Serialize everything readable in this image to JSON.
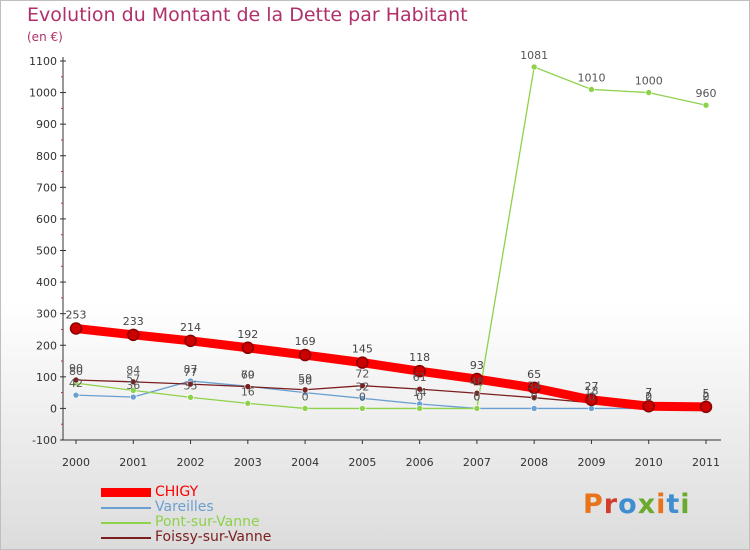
{
  "header": {
    "title": "Evolution du Montant de la Dette par Habitant",
    "unit": "(en €)"
  },
  "brand": {
    "text": "Proxiti",
    "colors": [
      "#e8731a",
      "#d23c2d",
      "#3f8fd0",
      "#6aaa2f",
      "#e8731a",
      "#3f8fd0",
      "#6aaa2f"
    ]
  },
  "colors": {
    "title": "#b0306a",
    "axis": "#333333",
    "grid": "#a0a0a0"
  },
  "chart_data": {
    "type": "line",
    "title": "Evolution du Montant de la Dette par Habitant",
    "ylabel": "(en €)",
    "xlabel": "",
    "categories": [
      "2000",
      "2001",
      "2002",
      "2003",
      "2004",
      "2005",
      "2006",
      "2007",
      "2008",
      "2009",
      "2010",
      "2011"
    ],
    "ylim": [
      -100,
      1100
    ],
    "yticks": [
      "-100",
      "0",
      "100",
      "200",
      "300",
      "400",
      "500",
      "600",
      "700",
      "800",
      "900",
      "1000",
      "1100"
    ],
    "grid": false,
    "legend": "bottom-left",
    "series": [
      {
        "name": "CHIGY",
        "color": "#ff0000",
        "values": [
          253,
          233,
          214,
          192,
          169,
          145,
          118,
          93,
          65,
          27,
          7,
          5
        ],
        "labels": [
          "253",
          "233",
          "214",
          "192",
          "169",
          "145",
          "118",
          "93",
          "65",
          "27",
          "7",
          "5"
        ],
        "emphasis": true
      },
      {
        "name": "Vareilles",
        "color": "#6a9fd1",
        "values": [
          42,
          36,
          87,
          70,
          50,
          32,
          14,
          0,
          0,
          0,
          0,
          0
        ],
        "labels": [
          "42",
          "36",
          "87",
          "70",
          "50",
          "32",
          "14",
          "0",
          "0",
          "0",
          "0",
          "0"
        ],
        "emphasis": false
      },
      {
        "name": "Pont-sur-Vanne",
        "color": "#8ed14b",
        "values": [
          80,
          57,
          35,
          16,
          0,
          0,
          0,
          0,
          1081,
          1010,
          1000,
          960
        ],
        "labels": [
          "80",
          "57",
          "35",
          "16",
          "0",
          "0",
          "0",
          "0",
          "1081",
          "1010",
          "1000",
          "960"
        ],
        "emphasis": false
      },
      {
        "name": "Foissy-sur-Vanne",
        "color": "#7a1e1e",
        "values": [
          90,
          84,
          77,
          69,
          59,
          72,
          61,
          48,
          34,
          18,
          2,
          2
        ],
        "labels": [
          "90",
          "84",
          "77",
          "69",
          "59",
          "72",
          "61",
          "48",
          "34",
          "18",
          "2",
          "2"
        ],
        "emphasis": false
      }
    ]
  }
}
